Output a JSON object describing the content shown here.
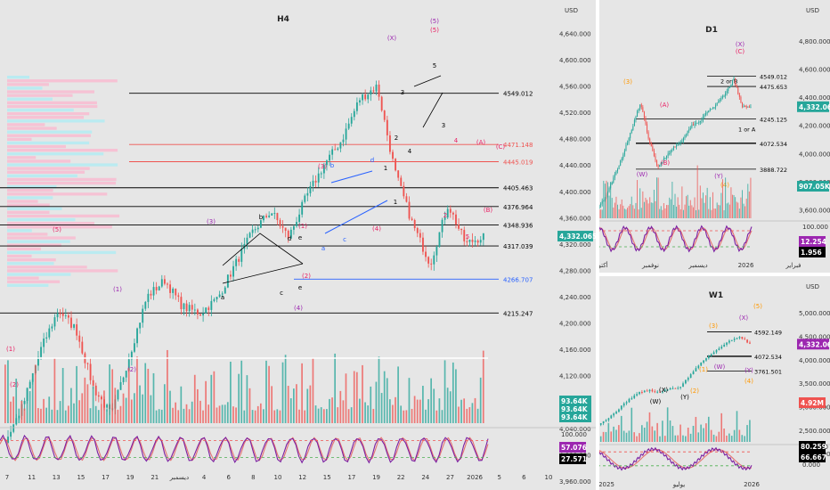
{
  "colors": {
    "background": "#e6e6e6",
    "bull": "#26a69a",
    "bear": "#ef5350",
    "wave_red": "#e91e63",
    "wave_purple": "#9c27b0",
    "wave_blue": "#2962ff",
    "wave_orange": "#ff9800",
    "stoch_k": "#7b1fa2",
    "stoch_d": "#e57373",
    "price_badge": "#26a69a",
    "level_black": "#000000",
    "level_red": "#ef5350",
    "level_green": "#4caf50"
  },
  "chart_data": [
    {
      "id": "h4",
      "type": "candlestick",
      "title": "H4",
      "currency": "USD",
      "ylim": [
        3960,
        4650
      ],
      "y_ticks": [
        "4,640.000",
        "4,600.000",
        "4,560.000",
        "4,520.000",
        "4,480.000",
        "4,440.000",
        "4,400.000",
        "4,360.000",
        "4,320.000",
        "4,280.000",
        "4,240.000",
        "4,200.000",
        "4,160.000",
        "4,120.000",
        "4,080.000",
        "4,040.000",
        "4,000.000",
        "3,960.000"
      ],
      "x_ticks": [
        "7",
        "11",
        "13",
        "15",
        "17",
        "19",
        "21",
        "ديسمبر",
        "4",
        "6",
        "8",
        "10",
        "12",
        "15",
        "17",
        "19",
        "22",
        "24",
        "27",
        "2026",
        "5",
        "6",
        "10"
      ],
      "last_price": "4,332.065",
      "levels": [
        {
          "value": 4549.012,
          "label": "4549.012",
          "color": "black"
        },
        {
          "value": 4471.148,
          "label": "4471.148",
          "color": "red"
        },
        {
          "value": 4445.019,
          "label": "4445.019",
          "color": "red"
        },
        {
          "value": 4405.463,
          "label": "4405.463",
          "color": "black"
        },
        {
          "value": 4376.964,
          "label": "4376.964",
          "color": "black"
        },
        {
          "value": 4348.936,
          "label": "4348.936",
          "color": "black"
        },
        {
          "value": 4317.039,
          "label": "4317.039",
          "color": "black"
        },
        {
          "value": 4266.707,
          "label": "4266.707",
          "color": "blue"
        },
        {
          "value": 4215.247,
          "label": "4215.247",
          "color": "black"
        }
      ],
      "wave_labels": [
        "(X)",
        "(5)",
        "(5)",
        "5",
        "3",
        "1",
        "4",
        "2",
        "(C)",
        "(A)",
        "(B)",
        "b",
        "d",
        "a",
        "c",
        "e",
        "(3)",
        "(4)",
        "(3)",
        "(1)",
        "(2)",
        "(4)",
        "(5)",
        "(1)",
        "(2)",
        "1",
        "2",
        "3",
        "4",
        "5",
        "a",
        "b",
        "c",
        "d",
        "e",
        "(1)",
        "(2)"
      ],
      "volume_labels": [
        "93.64K",
        "93.64K",
        "93.64K"
      ],
      "oscillator": {
        "ticks": [
          "100.000",
          "50.000",
          "0.000"
        ],
        "k": "57.076",
        "d": "27.571"
      }
    },
    {
      "id": "d1",
      "type": "candlestick",
      "title": "D1",
      "currency": "USD",
      "ylim": [
        3540,
        4900
      ],
      "y_ticks": [
        "4,800.000",
        "4,600.000",
        "4,400.000",
        "4,200.000",
        "4,000.000",
        "3,800.000",
        "3,600.000"
      ],
      "x_ticks": [
        "أكتو",
        "نوفمبر",
        "ديسمبر",
        "2026",
        "فبراير"
      ],
      "last_price": "4,332.065",
      "volume_badge": "907.05K",
      "levels": [
        {
          "value": 4549.012,
          "label": "4549.012"
        },
        {
          "value": 4475.653,
          "label": "4475.653"
        },
        {
          "value": 4245.125,
          "label": "4245.125"
        },
        {
          "value": 4072.534,
          "label": "4072.534"
        },
        {
          "value": 3888.722,
          "label": "3888.722"
        }
      ],
      "annotations": [
        "2 or B",
        "1 or A"
      ],
      "wave_labels": [
        "(3)",
        "(W)",
        "(X)",
        "(C)",
        "(A)",
        "(B)",
        "(Y)",
        "(4)"
      ],
      "oscillator": {
        "ticks": [
          "100.000",
          "0.000"
        ],
        "k": "12.254",
        "d": "1.956"
      }
    },
    {
      "id": "w1",
      "type": "candlestick",
      "title": "W1",
      "currency": "USD",
      "ylim": [
        1700,
        5400
      ],
      "y_ticks": [
        "5,000.000",
        "4,500.000",
        "4,000.000",
        "3,500.000",
        "3,000.000",
        "2,500.000",
        "2,000.000"
      ],
      "x_ticks": [
        "2025",
        "يوليو",
        "2026"
      ],
      "last_price": "4,332.065",
      "volume_badge": "4.92M",
      "levels": [
        {
          "value": 4592.149,
          "label": "4592.149"
        },
        {
          "value": 4072.534,
          "label": "4072.534"
        },
        {
          "value": 3761.501,
          "label": "3761.501"
        }
      ],
      "wave_labels": [
        "(5)",
        "(X)",
        "(X)",
        "(W)",
        "(Y)",
        "(1)",
        "(2)",
        "(3)",
        "(W)",
        "(Y)",
        "(4)"
      ],
      "oscillator": {
        "ticks": [
          "100.000",
          "0.000"
        ],
        "k": "80.259",
        "d": "66.667"
      }
    }
  ]
}
